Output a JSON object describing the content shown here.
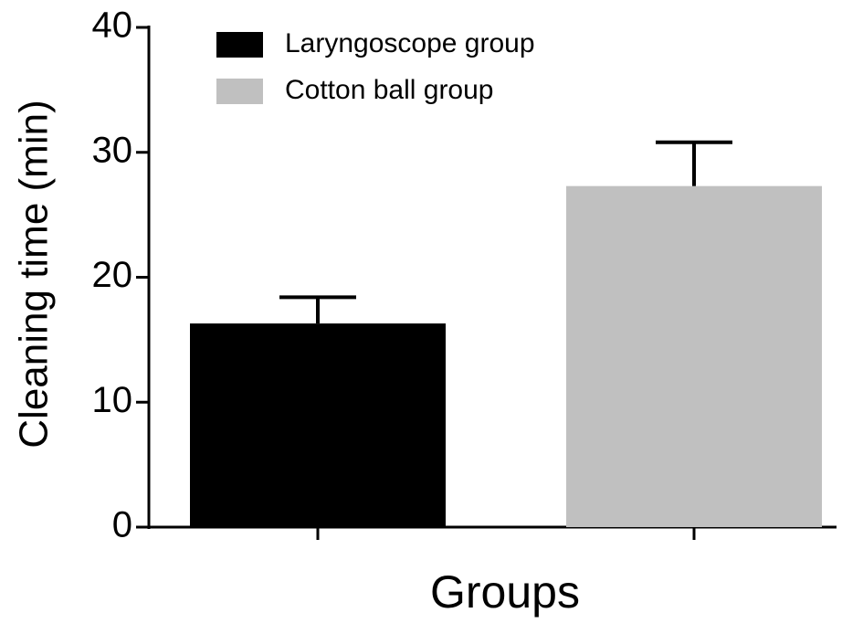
{
  "chart_data": {
    "type": "bar",
    "x_label": "Groups",
    "y_label": "Cleaning time (min)",
    "categories": [
      null,
      null
    ],
    "series": [
      {
        "name": "Laryngoscope group",
        "color": "#000000",
        "values": [
          16.3,
          null
        ],
        "errors": [
          2.1,
          null
        ]
      },
      {
        "name": "Cotton ball group",
        "color": "#c0c0c0",
        "values": [
          null,
          27.3
        ],
        "errors": [
          null,
          3.5
        ]
      }
    ],
    "ylim": [
      0,
      40
    ],
    "yticks": [
      0,
      10,
      20,
      30,
      40
    ],
    "grid": false,
    "legend": "top"
  }
}
